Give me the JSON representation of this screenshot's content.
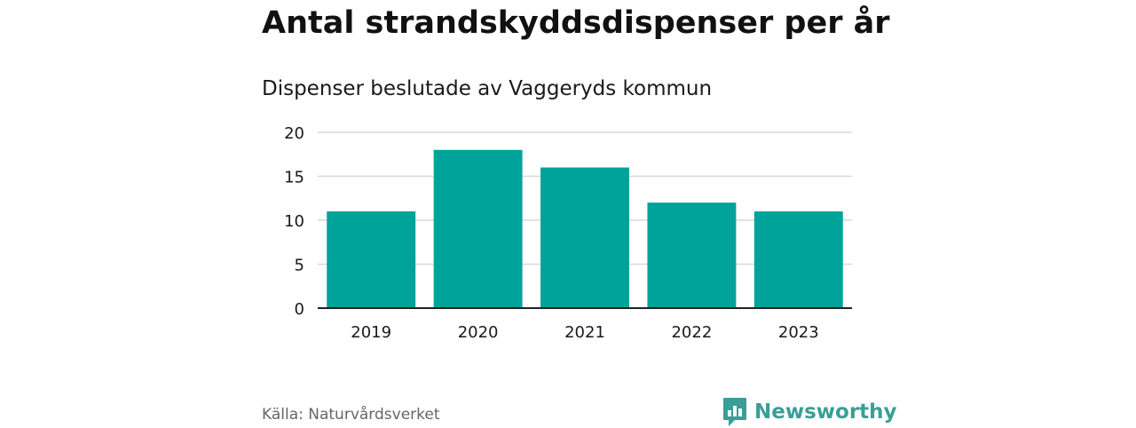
{
  "header": {
    "title": "Antal strandskyddsdispenser per år",
    "subtitle": "Dispenser beslutade av Vaggeryds kommun"
  },
  "footer": {
    "source": "Källa: Naturvårdsverket",
    "brand": "Newsworthy",
    "brand_color": "#3a9e96",
    "brand_icon": "bar-chart-speech-bubble-icon"
  },
  "colors": {
    "bar": "#00a39a",
    "grid": "#d9d9d9",
    "axis": "#222222",
    "text": "#1a1a1a"
  },
  "chart_data": {
    "type": "bar",
    "title": "Antal strandskyddsdispenser per år",
    "subtitle": "Dispenser beslutade av Vaggeryds kommun",
    "categories": [
      "2019",
      "2020",
      "2021",
      "2022",
      "2023"
    ],
    "values": [
      11,
      18,
      16,
      12,
      11
    ],
    "yticks": [
      "0",
      "5",
      "10",
      "15",
      "20"
    ],
    "ytick_values": [
      0,
      5,
      10,
      15,
      20
    ],
    "ylim": [
      0,
      20
    ],
    "xlabel": "",
    "ylabel": "",
    "grid": true,
    "legend": "none"
  }
}
